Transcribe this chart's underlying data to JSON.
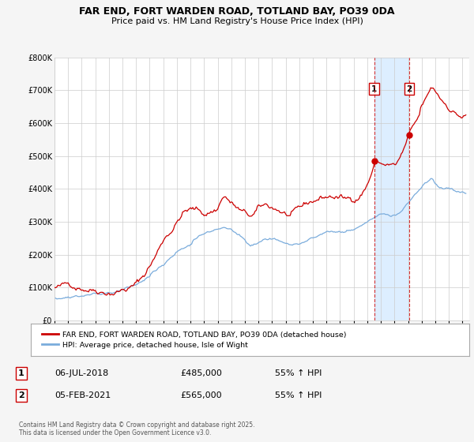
{
  "title": "FAR END, FORT WARDEN ROAD, TOTLAND BAY, PO39 0DA",
  "subtitle": "Price paid vs. HM Land Registry's House Price Index (HPI)",
  "legend_label_red": "FAR END, FORT WARDEN ROAD, TOTLAND BAY, PO39 0DA (detached house)",
  "legend_label_blue": "HPI: Average price, detached house, Isle of Wight",
  "annotation1": {
    "label": "1",
    "date": "06-JUL-2018",
    "price": "£485,000",
    "note": "55% ↑ HPI",
    "x_year": 2018.5
  },
  "annotation2": {
    "label": "2",
    "date": "05-FEB-2021",
    "price": "£565,000",
    "note": "55% ↑ HPI",
    "x_year": 2021.08
  },
  "footer": "Contains HM Land Registry data © Crown copyright and database right 2025.\nThis data is licensed under the Open Government Licence v3.0.",
  "ylim": [
    0,
    800000
  ],
  "xlim_start": 1995.0,
  "xlim_end": 2025.5,
  "background_color": "#f5f5f5",
  "plot_bg_color": "#ffffff",
  "red_color": "#cc0000",
  "blue_color": "#7aacdc",
  "span_color": "#ddeeff",
  "sale1_y": 485000,
  "sale2_y": 565000
}
